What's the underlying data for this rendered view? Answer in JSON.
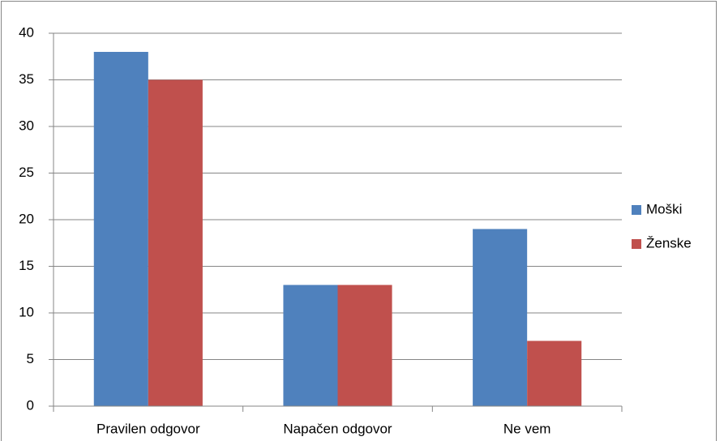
{
  "chart_data": {
    "type": "bar",
    "categories": [
      "Pravilen odgovor",
      "Napačen odgovor",
      "Ne vem"
    ],
    "series": [
      {
        "name": "Moški",
        "color": "#4f81bd",
        "values": [
          38,
          13,
          19
        ]
      },
      {
        "name": "Ženske",
        "color": "#c0504d",
        "values": [
          35,
          13,
          7
        ]
      }
    ],
    "ylim": [
      0,
      40
    ],
    "yticks": [
      0,
      5,
      10,
      15,
      20,
      25,
      30,
      35,
      40
    ],
    "grid": true,
    "legend": "right"
  }
}
